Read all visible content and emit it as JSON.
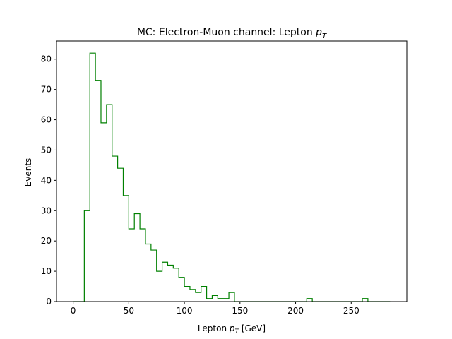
{
  "chart_data": {
    "type": "histogram",
    "title": "MC: Electron-Muon channel: Lepton p_T",
    "title_main": "MC: Electron-Muon channel: Lepton ",
    "title_sym": "p",
    "title_sub": "T",
    "xlabel_pre": "Lepton ",
    "xlabel_sym": "p",
    "xlabel_sub": "T",
    "xlabel_post": " [GeV]",
    "ylabel": "Events",
    "xlim": [
      -15,
      300
    ],
    "ylim": [
      0,
      86
    ],
    "xticks": [
      0,
      50,
      100,
      150,
      200,
      250
    ],
    "yticks": [
      0,
      10,
      20,
      30,
      40,
      50,
      60,
      70,
      80
    ],
    "bin_start": 0,
    "bin_width": 5,
    "counts": [
      0,
      0,
      30,
      82,
      73,
      59,
      65,
      48,
      44,
      35,
      24,
      29,
      24,
      19,
      17,
      10,
      13,
      12,
      11,
      8,
      5,
      4,
      3,
      5,
      1,
      2,
      1,
      1,
      3,
      0,
      0,
      0,
      0,
      0,
      0,
      0,
      0,
      0,
      0,
      0,
      0,
      0,
      1,
      0,
      0,
      0,
      0,
      0,
      0,
      0,
      0,
      0,
      1,
      0,
      0,
      0,
      0
    ],
    "line_color": "#008000",
    "grid": false,
    "legend": "none"
  }
}
